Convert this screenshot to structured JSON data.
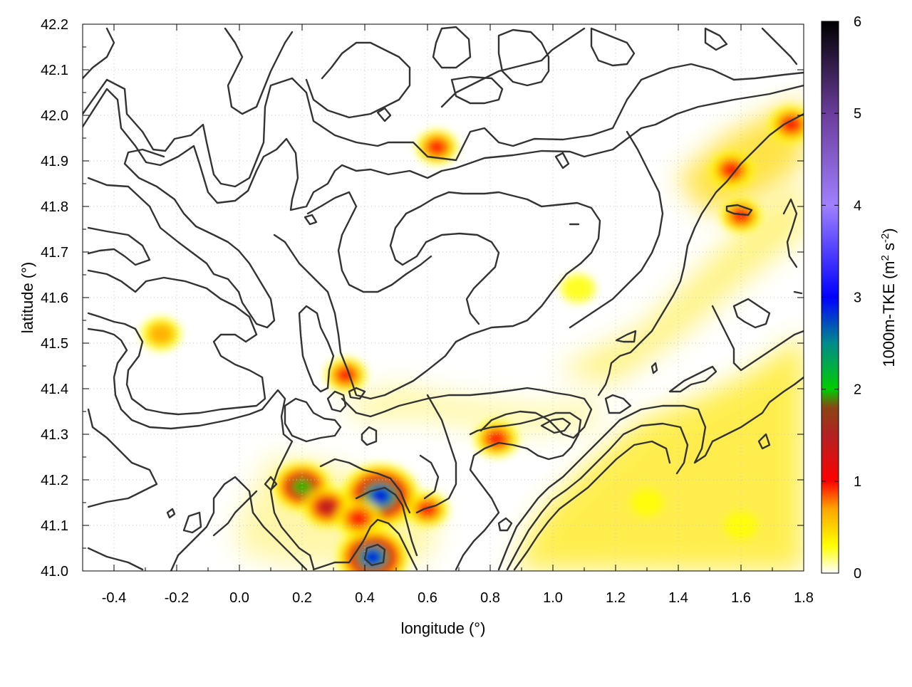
{
  "chart_data": {
    "type": "heatmap",
    "title": "",
    "xlabel": "longitude (°)",
    "ylabel": "latitude (°)",
    "colorbar_label": "1000m-TKE (m2 s-2)",
    "colorbar_label_parts": {
      "pre": "1000m-TKE (m",
      "sup1": "2",
      "mid": " s",
      "sup2": "-2",
      "post": ")"
    },
    "xlim": [
      -0.5,
      1.8
    ],
    "ylim": [
      41.0,
      42.2
    ],
    "clim": [
      0,
      6
    ],
    "x_ticks": [
      "-0.4",
      "-0.2",
      "0.0",
      "0.2",
      "0.4",
      "0.6",
      "0.8",
      "1.0",
      "1.2",
      "1.4",
      "1.6",
      "1.8"
    ],
    "x_tick_values": [
      -0.4,
      -0.2,
      0.0,
      0.2,
      0.4,
      0.6,
      0.8,
      1.0,
      1.2,
      1.4,
      1.6,
      1.8
    ],
    "y_ticks": [
      "41.0",
      "41.1",
      "41.2",
      "41.3",
      "41.4",
      "41.5",
      "41.6",
      "41.7",
      "41.8",
      "41.9",
      "42.0",
      "42.1",
      "42.2"
    ],
    "y_tick_values": [
      41.0,
      41.1,
      41.2,
      41.3,
      41.4,
      41.5,
      41.6,
      41.7,
      41.8,
      41.9,
      42.0,
      42.1,
      42.2
    ],
    "colorbar_ticks": [
      "0",
      "1",
      "2",
      "3",
      "4",
      "5",
      "6"
    ],
    "colorbar_tick_values": [
      0,
      1,
      2,
      3,
      4,
      5,
      6
    ],
    "colormap": [
      {
        "v": 0.0,
        "color": "#ffffff"
      },
      {
        "v": 0.3,
        "color": "#ffff00"
      },
      {
        "v": 0.7,
        "color": "#ffa500"
      },
      {
        "v": 1.0,
        "color": "#ff0000"
      },
      {
        "v": 1.5,
        "color": "#b22222"
      },
      {
        "v": 1.8,
        "color": "#8b4513"
      },
      {
        "v": 2.0,
        "color": "#00cc00"
      },
      {
        "v": 2.5,
        "color": "#008b8b"
      },
      {
        "v": 3.0,
        "color": "#0000ff"
      },
      {
        "v": 4.0,
        "color": "#a080ff"
      },
      {
        "v": 5.0,
        "color": "#6a3d9a"
      },
      {
        "v": 6.0,
        "color": "#000000"
      }
    ],
    "grid": true,
    "hotspots": [
      {
        "lon": 0.45,
        "lat": 41.165,
        "tke": 3.6
      },
      {
        "lon": 0.425,
        "lat": 41.03,
        "tke": 3.2
      },
      {
        "lon": 0.2,
        "lat": 41.185,
        "tke": 2.2
      },
      {
        "lon": 0.28,
        "lat": 41.14,
        "tke": 1.5
      },
      {
        "lon": 0.38,
        "lat": 41.115,
        "tke": 1.3
      },
      {
        "lon": 0.6,
        "lat": 41.135,
        "tke": 1.0
      },
      {
        "lon": 0.82,
        "lat": 41.29,
        "tke": 1.2
      },
      {
        "lon": 0.34,
        "lat": 41.43,
        "tke": 1.0
      },
      {
        "lon": 0.63,
        "lat": 41.93,
        "tke": 1.0
      },
      {
        "lon": -0.25,
        "lat": 41.52,
        "tke": 0.9
      },
      {
        "lon": 1.57,
        "lat": 41.88,
        "tke": 1.2
      },
      {
        "lon": 1.76,
        "lat": 41.98,
        "tke": 1.2
      },
      {
        "lon": 1.6,
        "lat": 41.78,
        "tke": 1.0
      },
      {
        "lon": 1.08,
        "lat": 41.62,
        "tke": 0.5
      },
      {
        "lon": 1.6,
        "lat": 41.1,
        "tke": 0.45
      },
      {
        "lon": 1.3,
        "lat": 41.15,
        "tke": 0.4
      }
    ]
  }
}
